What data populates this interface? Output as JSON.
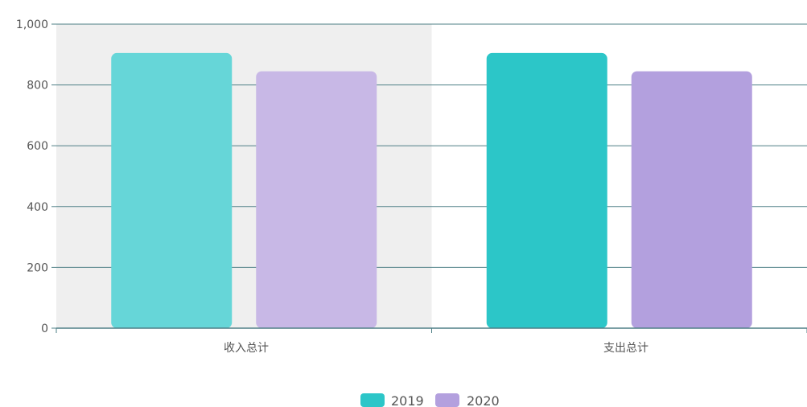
{
  "chart_data": {
    "type": "bar",
    "categories": [
      "收入总计",
      "支出总计"
    ],
    "series": [
      {
        "name": "2019",
        "values": [
          905,
          905
        ],
        "colors": [
          "#66d6d8",
          "#2cc6c8"
        ]
      },
      {
        "name": "2020",
        "values": [
          845,
          845
        ],
        "colors": [
          "#c8b8e6",
          "#b3a0de"
        ]
      }
    ],
    "ylim": [
      0,
      1000
    ],
    "yticks": [
      0,
      200,
      400,
      600,
      800,
      1000
    ],
    "ytick_labels": [
      "0",
      "200",
      "400",
      "600",
      "800",
      "1,000"
    ],
    "grid": true,
    "highlighted_category_index": 0,
    "legend_position": "bottom-center",
    "colors": {
      "grid": "#4e7f86",
      "axis": "#4e7f86",
      "highlight_band": "#efefef",
      "legend_2019": "#2cc6c8",
      "legend_2020": "#b3a0de"
    }
  }
}
